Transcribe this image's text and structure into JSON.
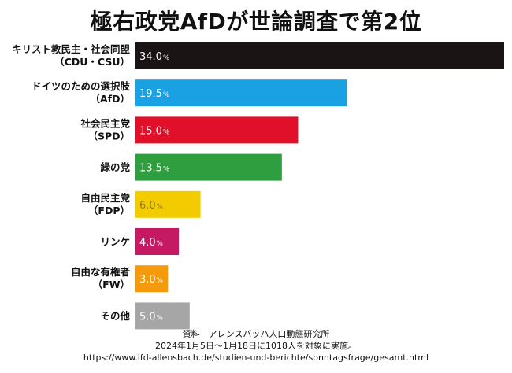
{
  "title": "極右政党AfDが世論調査で第2位",
  "chart_data": {
    "type": "bar",
    "orientation": "horizontal",
    "categories": [
      [
        "キリスト教民主・社会同盟",
        "（CDU・CSU）"
      ],
      [
        "ドイツのための選択肢",
        "（AfD）"
      ],
      [
        "社会民主党",
        "（SPD）"
      ],
      [
        "緑の党"
      ],
      [
        "自由民主党",
        "（FDP）"
      ],
      [
        "リンケ"
      ],
      [
        "自由な有権者",
        "（FW）"
      ],
      [
        "その他"
      ]
    ],
    "values": [
      34.0,
      19.5,
      15.0,
      13.5,
      6.0,
      4.0,
      3.0,
      5.0
    ],
    "value_labels": [
      "34.0",
      "19.5",
      "15.0",
      "13.5",
      "6.0",
      "4.0",
      "3.0",
      "5.0"
    ],
    "unit": "%",
    "colors": [
      "#1a1414",
      "#1aa1e3",
      "#e0102a",
      "#2e9e3e",
      "#f3cc00",
      "#c51a63",
      "#f59a0a",
      "#a6a6a6"
    ],
    "label_colors": [
      "#ffffff",
      "#ffffff",
      "#ffffff",
      "#ffffff",
      "#8a7a2a",
      "#ffffff",
      "#ffffff",
      "#ffffff"
    ],
    "xlim": [
      0,
      34.0
    ],
    "grid": false,
    "legend": "none"
  },
  "source": {
    "line1": "資料　アレンスバッハ人口動態研究所",
    "line2": "2024年1月5日～1月18日に1018人を対象に実施。",
    "line3": "https://www.ifd-allensbach.de/studien-und-berichte/sonntagsfrage/gesamt.html"
  }
}
